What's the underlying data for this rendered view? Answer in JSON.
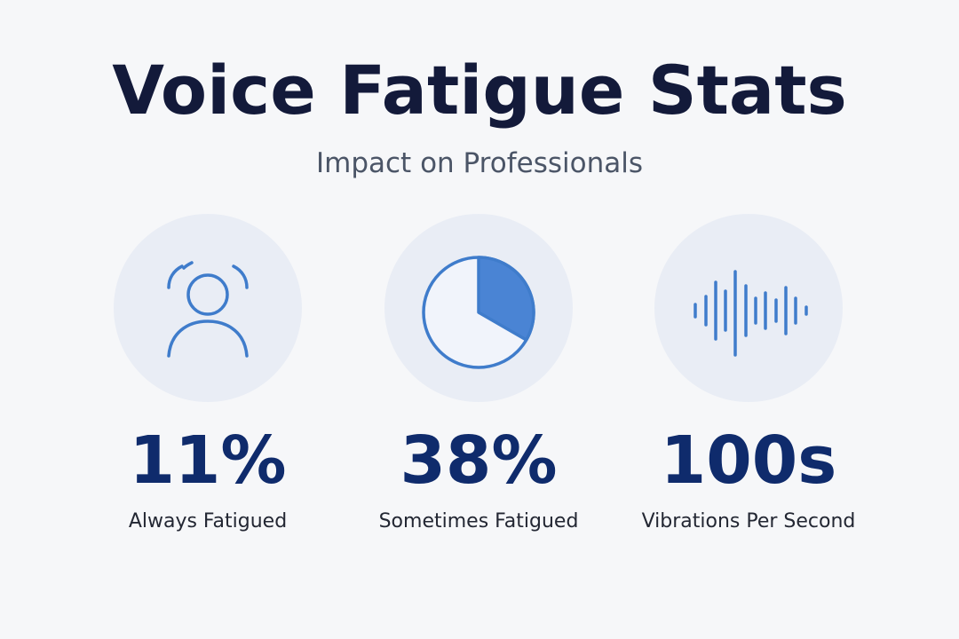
{
  "header": {
    "title": "Voice Fatigue Stats",
    "subtitle": "Impact on Professionals"
  },
  "stats": [
    {
      "value": "11%",
      "label": "Always Fatigued"
    },
    {
      "value": "38%",
      "label": "Sometimes Fatigued"
    },
    {
      "value": "100s",
      "label": "Vibrations Per Second"
    }
  ]
}
